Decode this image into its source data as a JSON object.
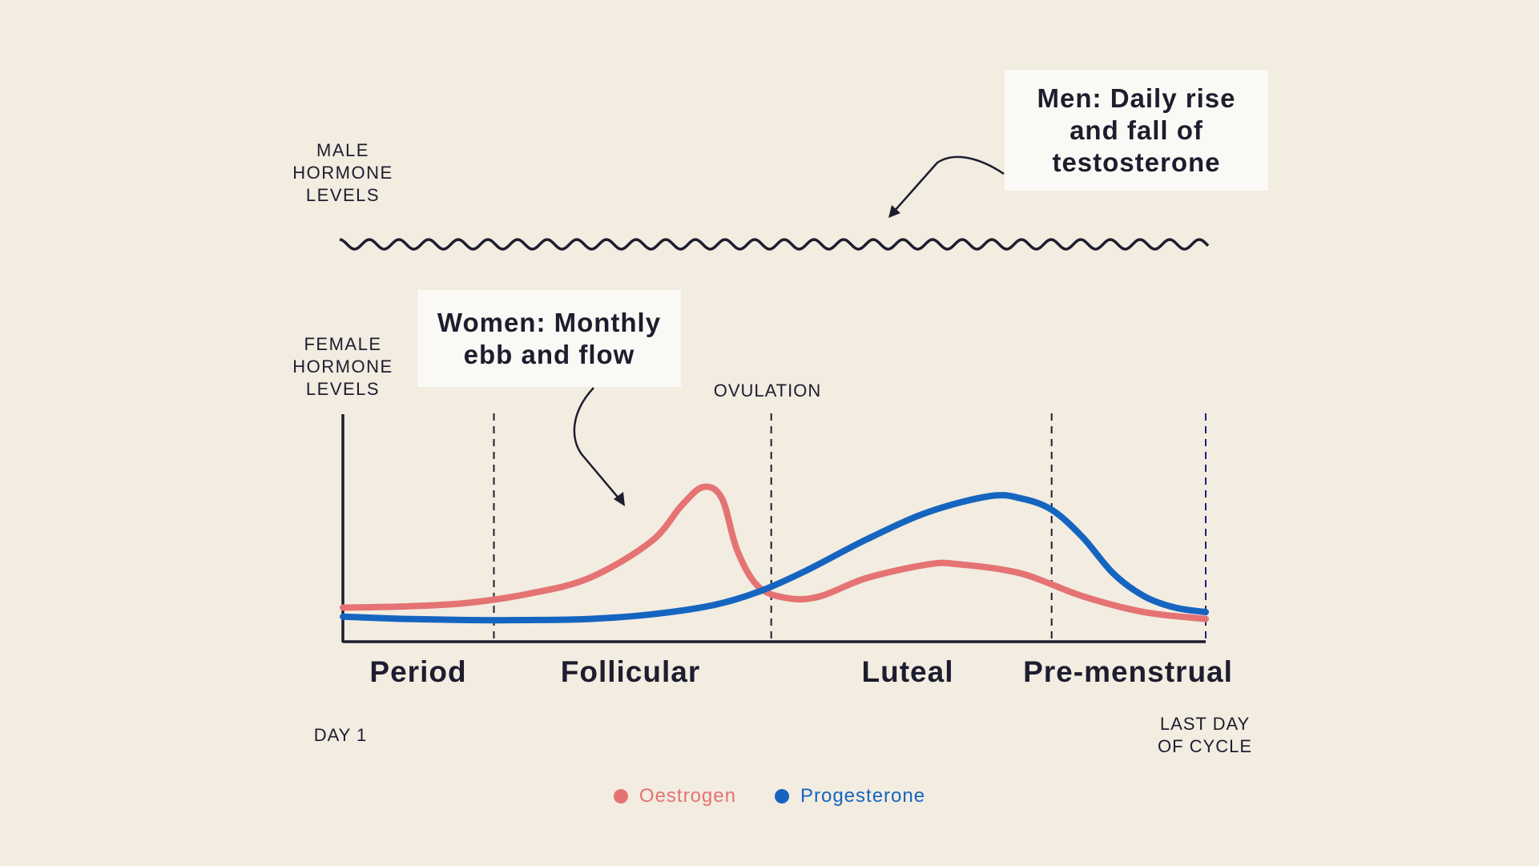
{
  "male_axis_label": "MALE\nHORMONE\nLEVELS",
  "female_axis_label": "FEMALE\nHORMONE\nLEVELS",
  "men_callout": "Men: Daily rise\nand fall of\ntestosterone",
  "women_callout": "Women: Monthly\nebb and flow",
  "ovulation_label": "OVULATION",
  "phases": [
    "Period",
    "Follicular",
    "Luteal",
    "Pre-menstrual"
  ],
  "start_label": "DAY 1",
  "end_label": "LAST DAY\nOF CYCLE",
  "legend": [
    {
      "name": "Oestrogen",
      "color": "#e57373"
    },
    {
      "name": "Progesterone",
      "color": "#1565c0"
    }
  ],
  "chart_data": {
    "type": "line",
    "title": "",
    "xlabel": "",
    "ylabel": "FEMALE HORMONE LEVELS",
    "xlim": [
      0,
      28
    ],
    "ylim": [
      0,
      100
    ],
    "phase_boundaries": [
      4.9,
      13.9,
      23.0,
      28
    ],
    "ovulation_day": 13.9,
    "series": [
      {
        "name": "Oestrogen",
        "color": "#e57373",
        "x": [
          0,
          2,
          4,
          6,
          8,
          10,
          11,
          11.7,
          12.3,
          12.8,
          13.5,
          14.5,
          15.5,
          17,
          19,
          20,
          22,
          24,
          26,
          28
        ],
        "y": [
          15,
          15.5,
          17,
          21,
          28,
          44,
          60,
          68,
          63,
          40,
          24,
          19,
          20,
          28,
          34,
          34,
          30,
          20,
          13,
          10
        ]
      },
      {
        "name": "Progesterone",
        "color": "#1565c0",
        "x": [
          0,
          2,
          4,
          6,
          8,
          10,
          12,
          13.5,
          15,
          17,
          19,
          21,
          22,
          23,
          24,
          25,
          26,
          27,
          28
        ],
        "y": [
          11,
          10,
          9.5,
          9.5,
          10,
          12,
          16,
          22,
          31,
          45,
          57,
          64,
          63,
          58,
          46,
          30,
          20,
          15,
          13
        ]
      }
    ]
  }
}
